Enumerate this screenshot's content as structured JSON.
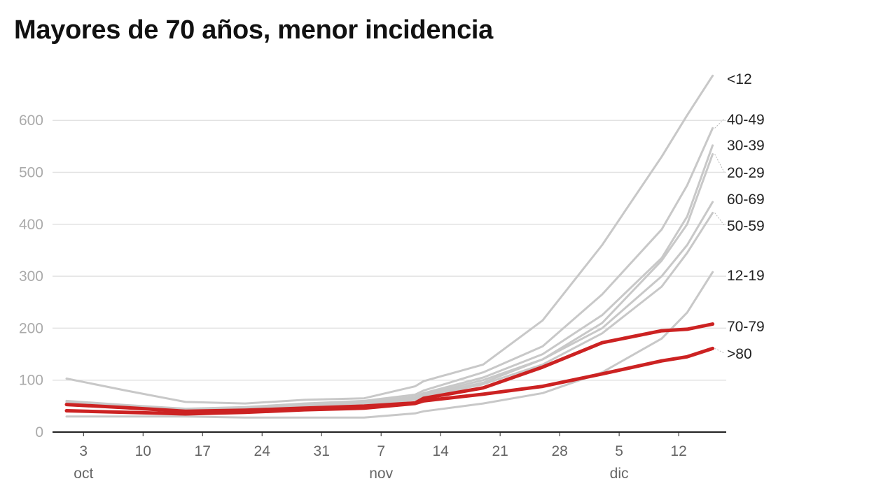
{
  "chart_data": {
    "type": "line",
    "title": "Mayores de 70 años, menor incidencia",
    "xlabel": "",
    "ylabel": "",
    "ylim": [
      0,
      700
    ],
    "yticks": [
      0,
      100,
      200,
      300,
      400,
      500,
      600
    ],
    "grid": true,
    "x_unit": "days since 1 oct",
    "x": [
      0,
      7,
      14,
      21,
      28,
      35,
      41,
      42,
      49,
      56,
      63,
      70,
      73,
      76
    ],
    "xticks": [
      {
        "day": 2,
        "label": "3",
        "month": "oct"
      },
      {
        "day": 9,
        "label": "10"
      },
      {
        "day": 16,
        "label": "17"
      },
      {
        "day": 23,
        "label": "24"
      },
      {
        "day": 30,
        "label": "31"
      },
      {
        "day": 37,
        "label": "7",
        "month": "nov"
      },
      {
        "day": 44,
        "label": "14"
      },
      {
        "day": 51,
        "label": "21"
      },
      {
        "day": 58,
        "label": "28"
      },
      {
        "day": 65,
        "label": "5",
        "month": "dic"
      },
      {
        "day": 72,
        "label": "12"
      }
    ],
    "series": [
      {
        "name": "<12",
        "color": "#c8c8c8",
        "highlight": false,
        "values": [
          103,
          80,
          58,
          55,
          62,
          65,
          88,
          98,
          130,
          215,
          360,
          530,
          610,
          686
        ]
      },
      {
        "name": "40-49",
        "color": "#c8c8c8",
        "highlight": false,
        "values": [
          60,
          52,
          45,
          48,
          55,
          60,
          72,
          80,
          115,
          165,
          265,
          390,
          475,
          585
        ]
      },
      {
        "name": "30-39",
        "color": "#c8c8c8",
        "highlight": false,
        "values": [
          58,
          50,
          42,
          45,
          52,
          57,
          68,
          75,
          105,
          150,
          225,
          335,
          415,
          552
        ]
      },
      {
        "name": "20-29",
        "color": "#c8c8c8",
        "highlight": false,
        "values": [
          55,
          48,
          40,
          43,
          50,
          55,
          65,
          72,
          100,
          140,
          210,
          330,
          400,
          535
        ]
      },
      {
        "name": "60-69",
        "color": "#c8c8c8",
        "highlight": false,
        "values": [
          55,
          47,
          40,
          43,
          48,
          52,
          63,
          70,
          95,
          140,
          200,
          300,
          360,
          443
        ]
      },
      {
        "name": "50-59",
        "color": "#c8c8c8",
        "highlight": false,
        "values": [
          52,
          46,
          40,
          42,
          48,
          52,
          62,
          68,
          92,
          130,
          190,
          280,
          345,
          422
        ]
      },
      {
        "name": "12-19",
        "color": "#c8c8c8",
        "highlight": false,
        "values": [
          30,
          30,
          30,
          28,
          28,
          28,
          36,
          40,
          55,
          75,
          115,
          180,
          230,
          308
        ]
      },
      {
        "name": "70-79",
        "color": "#cc2222",
        "highlight": true,
        "values": [
          53,
          47,
          40,
          42,
          46,
          50,
          56,
          65,
          85,
          125,
          172,
          195,
          198,
          208
        ]
      },
      {
        "name": ">80",
        "color": "#cc2222",
        "highlight": true,
        "values": [
          41,
          38,
          35,
          38,
          43,
          46,
          55,
          60,
          73,
          88,
          112,
          137,
          145,
          161
        ]
      }
    ]
  }
}
